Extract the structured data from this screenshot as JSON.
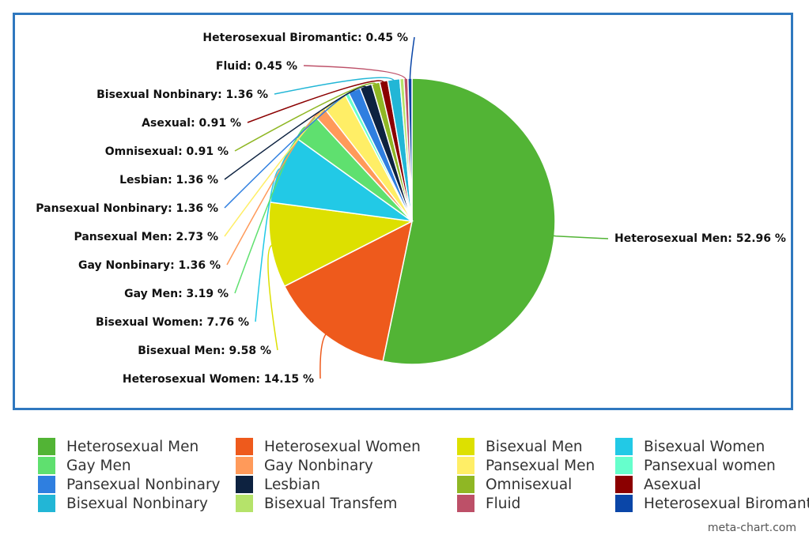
{
  "chart_data": {
    "type": "pie",
    "title": "",
    "slices": [
      {
        "label": "Heterosexual Men",
        "value": 52.96,
        "display": "Heterosexual Men: 52.96 %",
        "color": "#52b435"
      },
      {
        "label": "Heterosexual Women",
        "value": 14.15,
        "display": "Heterosexual Women: 14.15 %",
        "color": "#ee5a1c"
      },
      {
        "label": "Bisexual Men",
        "value": 9.58,
        "display": "Bisexual Men: 9.58 %",
        "color": "#dde000"
      },
      {
        "label": "Bisexual Women",
        "value": 7.76,
        "display": "Bisexual Women: 7.76 %",
        "color": "#22c9e6"
      },
      {
        "label": "Gay Men",
        "value": 3.19,
        "display": "Gay Men: 3.19 %",
        "color": "#5fe06f"
      },
      {
        "label": "Gay Nonbinary",
        "value": 1.36,
        "display": "Gay Nonbinary: 1.36 %",
        "color": "#ff9a5a"
      },
      {
        "label": "Pansexual Men",
        "value": 2.73,
        "display": "Pansexual Men: 2.73 %",
        "color": "#ffee66"
      },
      {
        "label": "Pansexual women",
        "value": 0.45,
        "display": "",
        "color": "#66ffcc"
      },
      {
        "label": "Pansexual Nonbinary",
        "value": 1.36,
        "display": "Pansexual Nonbinary: 1.36 %",
        "color": "#2f7fe0"
      },
      {
        "label": "Lesbian",
        "value": 1.36,
        "display": "Lesbian: 1.36 %",
        "color": "#0d2240"
      },
      {
        "label": "Omnisexual",
        "value": 0.91,
        "display": "Omnisexual: 0.91 %",
        "color": "#8fb724"
      },
      {
        "label": "Asexual",
        "value": 0.91,
        "display": "Asexual: 0.91 %",
        "color": "#8b0000"
      },
      {
        "label": "Bisexual Nonbinary",
        "value": 1.36,
        "display": "Bisexual Nonbinary: 1.36 %",
        "color": "#22b6d6"
      },
      {
        "label": "Bisexual Transfem",
        "value": 0.45,
        "display": "",
        "color": "#b5e36a"
      },
      {
        "label": "Fluid",
        "value": 0.45,
        "display": "Fluid: 0.45 %",
        "color": "#bd5068"
      },
      {
        "label": "Heterosexual Biromantic",
        "value": 0.45,
        "display": "Heterosexual Biromantic: 0.45 %",
        "color": "#0a46a8"
      }
    ],
    "legend_position": "bottom"
  },
  "legend": [
    "Heterosexual Men",
    "Heterosexual Women",
    "Bisexual Men",
    "Bisexual Women",
    "Gay Men",
    "Gay Nonbinary",
    "Pansexual Men",
    "Pansexual women",
    "Pansexual Nonbinary",
    "Lesbian",
    "Omnisexual",
    "Asexual",
    "Bisexual Nonbinary",
    "Bisexual Transfem",
    "Fluid",
    "Heterosexual Biromantic"
  ],
  "watermark": "meta-chart.com",
  "frame_color": "#2f78bf"
}
